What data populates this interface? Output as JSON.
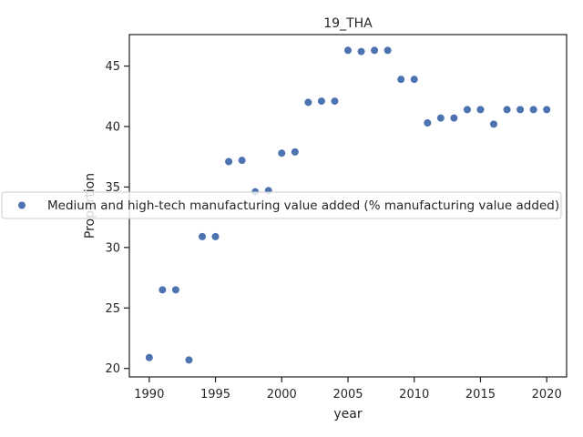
{
  "chart_data": {
    "type": "scatter",
    "title": "19_THA",
    "xlabel": "year",
    "ylabel": "Proportion",
    "xlim": [
      1988.5,
      2021.5
    ],
    "ylim": [
      19.3,
      47.6
    ],
    "xticks": [
      1990,
      1995,
      2000,
      2005,
      2010,
      2015,
      2020
    ],
    "yticks": [
      20,
      25,
      30,
      35,
      40,
      45
    ],
    "grid": false,
    "legend_position": "center",
    "colors": {
      "series": "#4c72b0",
      "axis": "#262626"
    },
    "series": [
      {
        "name": "Medium and high-tech manufacturing value added (% manufacturing value added)",
        "x": [
          1990,
          1991,
          1992,
          1993,
          1994,
          1995,
          1996,
          1997,
          1998,
          1999,
          2000,
          2001,
          2002,
          2003,
          2004,
          2005,
          2006,
          2007,
          2008,
          2009,
          2010,
          2011,
          2012,
          2013,
          2014,
          2015,
          2016,
          2017,
          2018,
          2019,
          2020
        ],
        "y": [
          20.9,
          26.5,
          26.5,
          20.7,
          30.9,
          30.9,
          37.1,
          37.2,
          34.6,
          34.7,
          37.8,
          37.9,
          42.0,
          42.1,
          42.1,
          46.3,
          46.2,
          46.3,
          46.3,
          43.9,
          43.9,
          40.3,
          40.7,
          40.7,
          41.4,
          41.4,
          40.2,
          41.4,
          41.4,
          41.4,
          41.4
        ]
      }
    ]
  }
}
